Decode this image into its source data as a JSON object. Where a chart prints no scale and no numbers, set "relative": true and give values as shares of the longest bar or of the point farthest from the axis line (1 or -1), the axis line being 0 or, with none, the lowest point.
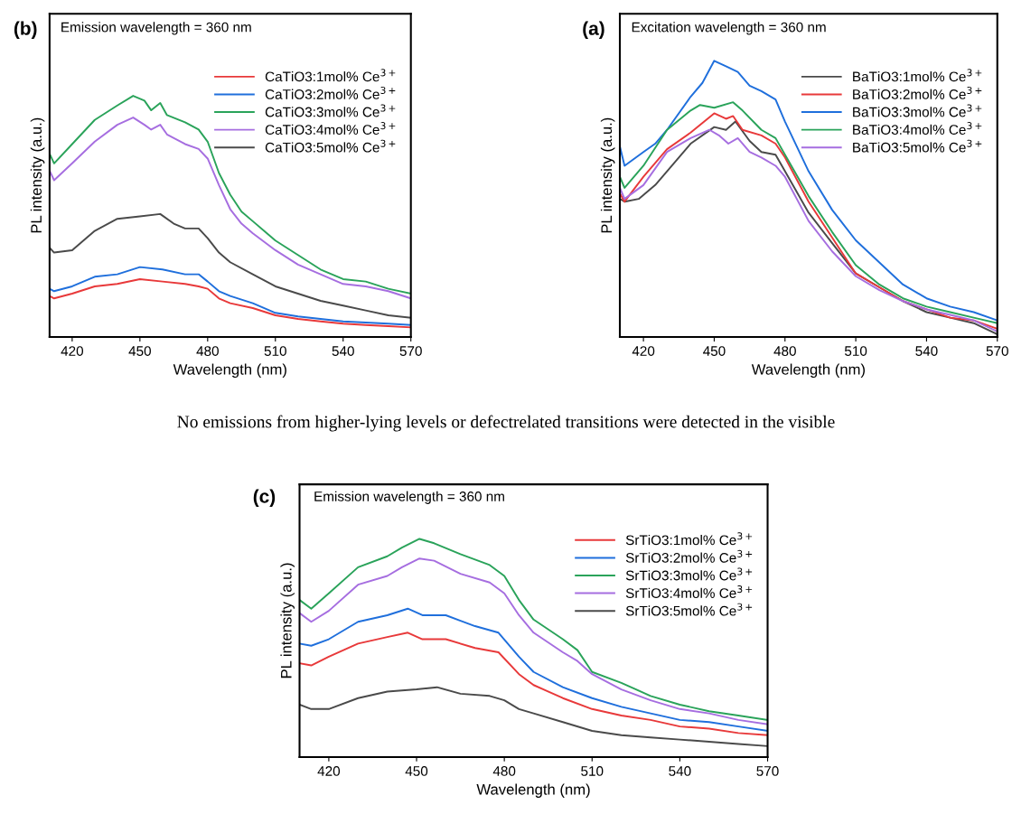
{
  "chart_data": [
    {
      "type": "line",
      "title": "(b)",
      "xlabel": "Wavelength (nm)",
      "ylabel": "PL intensity (a.u.)",
      "annotations": [
        "Emission wavelength = 360 nm"
      ],
      "xlim": [
        410,
        570
      ],
      "xticks": [
        420,
        450,
        480,
        510,
        540,
        570
      ],
      "relative": true,
      "legend": "top right",
      "series": [
        {
          "name": "CaTiO3:1mol% Ce$^{3+}$",
          "color": "#e8393a",
          "x": [
            410,
            412,
            420,
            430,
            440,
            450,
            460,
            470,
            476,
            480,
            485,
            490,
            500,
            510,
            520,
            530,
            540,
            550,
            560,
            570
          ],
          "values": [
            0.17,
            0.16,
            0.18,
            0.21,
            0.22,
            0.24,
            0.23,
            0.22,
            0.21,
            0.2,
            0.16,
            0.14,
            0.12,
            0.09,
            0.075,
            0.065,
            0.055,
            0.05,
            0.045,
            0.04
          ]
        },
        {
          "name": "CaTiO3:2mol% Ce$^{3+}$",
          "color": "#1f6fdc",
          "x": [
            410,
            412,
            420,
            430,
            440,
            450,
            460,
            470,
            476,
            480,
            485,
            490,
            500,
            510,
            520,
            530,
            540,
            550,
            560,
            570
          ],
          "values": [
            0.2,
            0.19,
            0.21,
            0.25,
            0.26,
            0.29,
            0.28,
            0.26,
            0.26,
            0.23,
            0.19,
            0.17,
            0.14,
            0.1,
            0.085,
            0.075,
            0.065,
            0.06,
            0.055,
            0.05
          ]
        },
        {
          "name": "CaTiO3:3mol% Ce$^{3+}$",
          "color": "#2aa35a",
          "x": [
            410,
            412,
            420,
            430,
            440,
            447,
            452,
            455,
            459,
            462,
            470,
            476,
            480,
            485,
            490,
            495,
            500,
            510,
            520,
            530,
            540,
            550,
            560,
            570
          ],
          "values": [
            0.76,
            0.72,
            0.8,
            0.9,
            0.96,
            1.0,
            0.98,
            0.94,
            0.97,
            0.92,
            0.89,
            0.86,
            0.81,
            0.68,
            0.59,
            0.52,
            0.48,
            0.4,
            0.34,
            0.28,
            0.24,
            0.23,
            0.2,
            0.18
          ]
        },
        {
          "name": "CaTiO3:4mol% Ce$^{3+}$",
          "color": "#a66ee0",
          "x": [
            410,
            412,
            420,
            430,
            440,
            447,
            452,
            455,
            459,
            462,
            470,
            476,
            480,
            485,
            490,
            495,
            500,
            510,
            520,
            530,
            540,
            550,
            560,
            570
          ],
          "values": [
            0.69,
            0.65,
            0.72,
            0.81,
            0.88,
            0.91,
            0.88,
            0.86,
            0.88,
            0.84,
            0.8,
            0.78,
            0.74,
            0.63,
            0.53,
            0.47,
            0.43,
            0.36,
            0.3,
            0.26,
            0.22,
            0.21,
            0.19,
            0.16
          ]
        },
        {
          "name": "CaTiO3:5mol% Ce$^{3+}$",
          "color": "#4a4a4a",
          "x": [
            410,
            412,
            420,
            425,
            430,
            440,
            450,
            459,
            465,
            470,
            476,
            480,
            485,
            490,
            500,
            510,
            520,
            530,
            540,
            550,
            560,
            570
          ],
          "values": [
            0.37,
            0.35,
            0.36,
            0.4,
            0.44,
            0.49,
            0.5,
            0.51,
            0.47,
            0.45,
            0.45,
            0.41,
            0.35,
            0.31,
            0.26,
            0.21,
            0.18,
            0.15,
            0.13,
            0.11,
            0.09,
            0.08
          ]
        }
      ]
    },
    {
      "type": "line",
      "title": "(a)",
      "xlabel": "Wavelength (nm)",
      "ylabel": "PL intensity (a.u.)",
      "annotations": [
        "Excitation wavelength = 360 nm"
      ],
      "xlim": [
        410,
        570
      ],
      "xticks": [
        420,
        450,
        480,
        510,
        540,
        570
      ],
      "relative": true,
      "legend": "top right",
      "series": [
        {
          "name": "BaTiO3:1mol% Ce$^{3+}$",
          "color": "#4a4a4a",
          "x": [
            410,
            412,
            418,
            425,
            430,
            440,
            450,
            455,
            459,
            465,
            470,
            476,
            480,
            490,
            500,
            510,
            520,
            530,
            540,
            550,
            560,
            570
          ],
          "values": [
            0.5,
            0.49,
            0.5,
            0.55,
            0.6,
            0.7,
            0.76,
            0.75,
            0.78,
            0.71,
            0.67,
            0.66,
            0.6,
            0.45,
            0.34,
            0.23,
            0.18,
            0.13,
            0.09,
            0.07,
            0.05,
            0.01
          ]
        },
        {
          "name": "BaTiO3:2mol% Ce$^{3+}$",
          "color": "#e8393a",
          "x": [
            410,
            412,
            420,
            430,
            440,
            450,
            455,
            458,
            462,
            470,
            476,
            480,
            490,
            500,
            510,
            520,
            530,
            540,
            550,
            560,
            570
          ],
          "values": [
            0.52,
            0.49,
            0.58,
            0.68,
            0.74,
            0.81,
            0.79,
            0.8,
            0.75,
            0.73,
            0.7,
            0.65,
            0.49,
            0.36,
            0.23,
            0.18,
            0.13,
            0.1,
            0.07,
            0.06,
            0.03
          ]
        },
        {
          "name": "BaTiO3:3mol% Ce$^{3+}$",
          "color": "#1f6fdc",
          "x": [
            410,
            412,
            420,
            425,
            430,
            440,
            445,
            450,
            455,
            460,
            465,
            470,
            476,
            480,
            490,
            500,
            510,
            520,
            530,
            540,
            550,
            560,
            570
          ],
          "values": [
            0.69,
            0.62,
            0.67,
            0.7,
            0.75,
            0.87,
            0.92,
            1.0,
            0.98,
            0.96,
            0.91,
            0.89,
            0.86,
            0.78,
            0.6,
            0.46,
            0.35,
            0.27,
            0.19,
            0.14,
            0.11,
            0.09,
            0.06
          ]
        },
        {
          "name": "BaTiO3:4mol% Ce$^{3+}$",
          "color": "#2aa35a",
          "x": [
            410,
            412,
            420,
            430,
            440,
            444,
            450,
            458,
            462,
            470,
            476,
            480,
            490,
            500,
            510,
            520,
            530,
            540,
            550,
            560,
            570
          ],
          "values": [
            0.58,
            0.54,
            0.62,
            0.75,
            0.82,
            0.84,
            0.83,
            0.85,
            0.82,
            0.75,
            0.72,
            0.66,
            0.51,
            0.38,
            0.26,
            0.19,
            0.14,
            0.11,
            0.09,
            0.07,
            0.05
          ]
        },
        {
          "name": "BaTiO3:5mol% Ce$^{3+}$",
          "color": "#a66ee0",
          "x": [
            410,
            412,
            420,
            430,
            440,
            448,
            452,
            456,
            460,
            465,
            470,
            476,
            480,
            490,
            500,
            510,
            520,
            530,
            540,
            550,
            560,
            570
          ],
          "values": [
            0.54,
            0.5,
            0.55,
            0.67,
            0.72,
            0.75,
            0.73,
            0.7,
            0.72,
            0.67,
            0.65,
            0.62,
            0.58,
            0.42,
            0.31,
            0.22,
            0.17,
            0.13,
            0.1,
            0.08,
            0.06,
            0.02
          ]
        }
      ]
    },
    {
      "type": "other",
      "annotations": [
        "No emissions from higher-lying levels or defectrelated transitions were detected in the visible"
      ]
    },
    {
      "type": "line",
      "title": "(c)",
      "xlabel": "Wavelength (nm)",
      "ylabel": "PL intensity (a.u.)",
      "annotations": [
        "Emission wavelength = 360 nm"
      ],
      "xlim": [
        410,
        570
      ],
      "xticks": [
        420,
        450,
        480,
        510,
        540,
        570
      ],
      "relative": true,
      "legend": "top right",
      "series": [
        {
          "name": "SrTiO3:1mol% Ce$^{3+}$",
          "color": "#e8393a",
          "x": [
            410,
            414,
            420,
            430,
            440,
            447,
            452,
            460,
            470,
            478,
            485,
            490,
            500,
            510,
            520,
            530,
            540,
            550,
            560,
            570
          ],
          "values": [
            0.43,
            0.42,
            0.46,
            0.52,
            0.55,
            0.57,
            0.54,
            0.54,
            0.5,
            0.48,
            0.38,
            0.33,
            0.27,
            0.22,
            0.19,
            0.17,
            0.14,
            0.13,
            0.11,
            0.1
          ]
        },
        {
          "name": "SrTiO3:2mol% Ce$^{3+}$",
          "color": "#1f6fdc",
          "x": [
            410,
            414,
            420,
            430,
            440,
            447,
            452,
            460,
            470,
            478,
            485,
            490,
            500,
            510,
            520,
            530,
            540,
            550,
            560,
            570
          ],
          "values": [
            0.52,
            0.51,
            0.54,
            0.62,
            0.65,
            0.68,
            0.65,
            0.65,
            0.6,
            0.57,
            0.46,
            0.39,
            0.32,
            0.27,
            0.23,
            0.2,
            0.17,
            0.16,
            0.14,
            0.12
          ]
        },
        {
          "name": "SrTiO3:3mol% Ce$^{3+}$",
          "color": "#2aa35a",
          "x": [
            410,
            414,
            420,
            430,
            440,
            445,
            451,
            456,
            465,
            475,
            480,
            485,
            490,
            500,
            505,
            510,
            520,
            530,
            540,
            550,
            560,
            570
          ],
          "values": [
            0.72,
            0.68,
            0.75,
            0.87,
            0.92,
            0.96,
            1.0,
            0.98,
            0.93,
            0.88,
            0.83,
            0.72,
            0.63,
            0.54,
            0.49,
            0.39,
            0.34,
            0.28,
            0.24,
            0.21,
            0.19,
            0.17
          ]
        },
        {
          "name": "SrTiO3:4mol% Ce$^{3+}$",
          "color": "#a66ee0",
          "x": [
            410,
            414,
            420,
            430,
            440,
            445,
            451,
            456,
            465,
            475,
            480,
            485,
            490,
            500,
            505,
            510,
            520,
            530,
            540,
            550,
            560,
            570
          ],
          "values": [
            0.66,
            0.62,
            0.67,
            0.79,
            0.83,
            0.87,
            0.91,
            0.9,
            0.84,
            0.8,
            0.75,
            0.65,
            0.57,
            0.48,
            0.44,
            0.38,
            0.31,
            0.26,
            0.22,
            0.2,
            0.17,
            0.15
          ]
        },
        {
          "name": "SrTiO3:5mol% Ce$^{3+}$",
          "color": "#4a4a4a",
          "x": [
            410,
            414,
            420,
            430,
            440,
            450,
            457,
            465,
            475,
            480,
            485,
            490,
            500,
            510,
            520,
            530,
            540,
            550,
            560,
            570
          ],
          "values": [
            0.24,
            0.22,
            0.22,
            0.27,
            0.3,
            0.31,
            0.32,
            0.29,
            0.28,
            0.26,
            0.22,
            0.2,
            0.16,
            0.12,
            0.1,
            0.09,
            0.08,
            0.07,
            0.06,
            0.05
          ]
        }
      ]
    }
  ]
}
